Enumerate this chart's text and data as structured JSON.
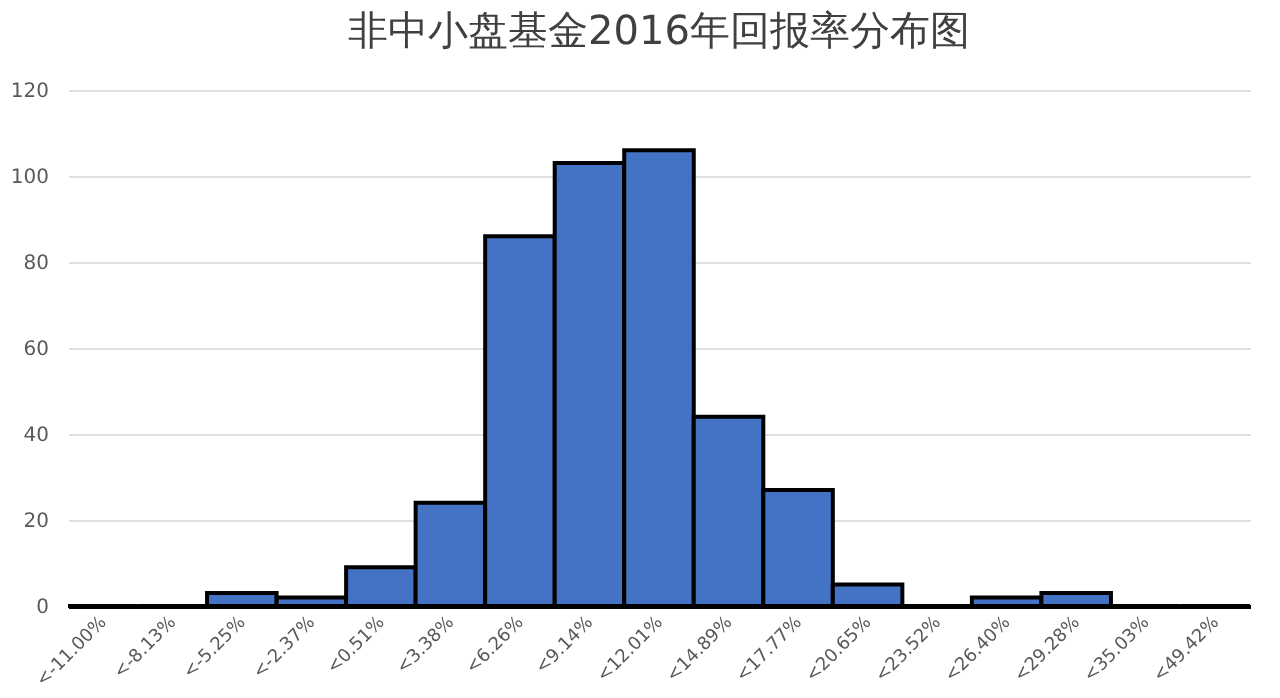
{
  "chart_data": {
    "type": "bar",
    "title": "非中小盘基金2016年回报率分布图",
    "categories": [
      "<-11.00%",
      "<-8.13%",
      "<-5.25%",
      "<-2.37%",
      "<0.51%",
      "<3.38%",
      "<6.26%",
      "<9.14%",
      "<12.01%",
      "<14.89%",
      "<17.77%",
      "<20.65%",
      "<23.52%",
      "<26.40%",
      "<29.28%",
      "<35.03%",
      "<49.42%"
    ],
    "values": [
      0,
      0,
      3,
      2,
      9,
      24,
      86,
      103,
      106,
      44,
      27,
      5,
      0,
      2,
      3,
      0,
      0
    ],
    "color": "#4472c4",
    "ylim": [
      0,
      120
    ],
    "yticks": [
      0,
      20,
      40,
      60,
      80,
      100,
      120
    ],
    "grid": "y"
  }
}
